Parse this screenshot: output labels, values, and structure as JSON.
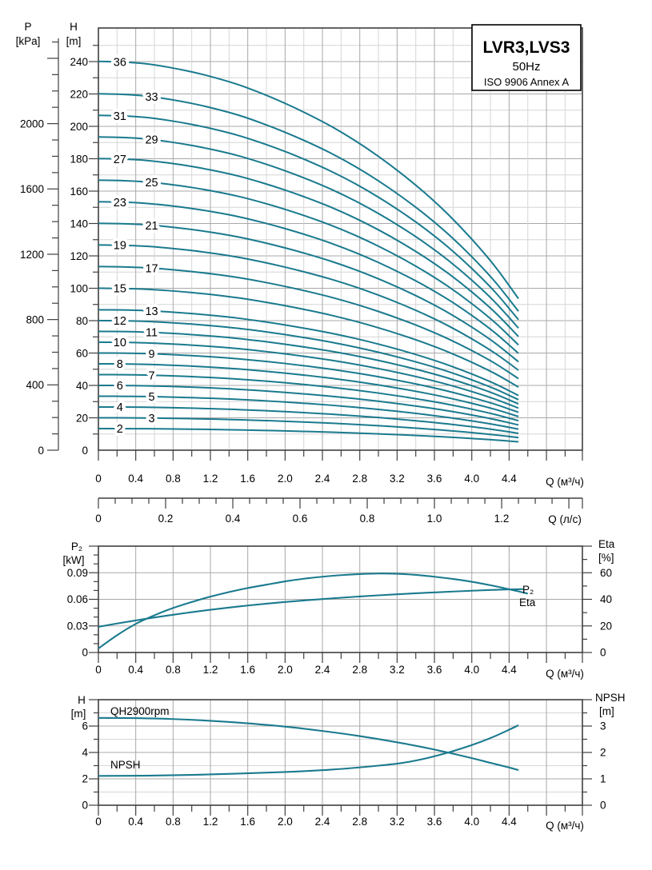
{
  "title_box": {
    "model": "LVR3,LVS3",
    "frequency": "50Hz",
    "standard": "ISO 9906 Annex A"
  },
  "colors": {
    "curve": "#1a7a8e",
    "frame": "#3f3f3f",
    "grid_major": "#a8a8a8",
    "grid_minor": "#d6d6d6",
    "text": "#000000",
    "halo": "#ffffff"
  },
  "chart_data": [
    {
      "id": "qh-multistage",
      "type": "line",
      "x_axis": {
        "label": "Q (м³/ч)",
        "tick_labels": [
          "0",
          "0.4",
          "0.8",
          "1.2",
          "1.6",
          "2.0",
          "2.4",
          "2.8",
          "3.2",
          "3.6",
          "4.0",
          "4.4"
        ],
        "major_step": 0.4,
        "minor_step": 0.2,
        "max": 5.185
      },
      "x_axis_secondary": {
        "label": "Q (л/с)",
        "tick_labels": [
          "0",
          "0.2",
          "0.4",
          "0.6",
          "0.8",
          "1.0",
          "1.2"
        ],
        "major_step": 0.2,
        "minor_step": 0.05,
        "max": 1.4,
        "to_m3h": 3.6
      },
      "p_axis": {
        "title": "P",
        "unit": "[kPa]",
        "tick_labels": [
          "0",
          "400",
          "800",
          "1200",
          "1600",
          "2000"
        ],
        "major_step": 400,
        "minor_step": 100,
        "max": 2500
      },
      "h_axis": {
        "title": "H",
        "unit": "[m]",
        "tick_labels": [
          "0",
          "20",
          "40",
          "60",
          "80",
          "100",
          "120",
          "140",
          "160",
          "180",
          "200",
          "220",
          "240"
        ],
        "major_step": 20,
        "minor_step": 10,
        "max": 250
      },
      "per_stage_curve": {
        "Q": [
          0,
          0.25,
          0.5,
          0.75,
          1.0,
          1.25,
          1.5,
          1.75,
          2.0,
          2.25,
          2.5,
          2.75,
          3.0,
          3.25,
          3.5,
          3.75,
          4.0,
          4.25,
          4.5
        ],
        "H": [
          6.67,
          6.66,
          6.63,
          6.57,
          6.49,
          6.39,
          6.27,
          6.12,
          5.95,
          5.76,
          5.55,
          5.31,
          5.04,
          4.74,
          4.41,
          4.04,
          3.62,
          3.15,
          2.6
        ]
      },
      "stage_label_columns_Q": [
        0.23,
        0.57
      ],
      "stages": [
        {
          "label": "36",
          "stages": 36,
          "col": 0
        },
        {
          "label": "33",
          "stages": 33,
          "col": 1
        },
        {
          "label": "31",
          "stages": 31,
          "col": 0
        },
        {
          "label": "29",
          "stages": 29,
          "col": 1
        },
        {
          "label": "27",
          "stages": 27,
          "col": 0
        },
        {
          "label": "25",
          "stages": 25,
          "col": 1
        },
        {
          "label": "23",
          "stages": 23,
          "col": 0
        },
        {
          "label": "21",
          "stages": 21,
          "col": 1
        },
        {
          "label": "19",
          "stages": 19,
          "col": 0
        },
        {
          "label": "17",
          "stages": 17,
          "col": 1
        },
        {
          "label": "15",
          "stages": 15,
          "col": 0
        },
        {
          "label": "13",
          "stages": 13,
          "col": 1
        },
        {
          "label": "12",
          "stages": 12,
          "col": 0
        },
        {
          "label": "11",
          "stages": 11,
          "col": 1
        },
        {
          "label": "10",
          "stages": 10,
          "col": 0
        },
        {
          "label": "9",
          "stages": 9,
          "col": 1
        },
        {
          "label": "8",
          "stages": 8,
          "col": 0
        },
        {
          "label": "7",
          "stages": 7,
          "col": 1
        },
        {
          "label": "6",
          "stages": 6,
          "col": 0
        },
        {
          "label": "5",
          "stages": 5,
          "col": 1
        },
        {
          "label": "4",
          "stages": 4,
          "col": 0
        },
        {
          "label": "3",
          "stages": 3,
          "col": 1
        },
        {
          "label": "2",
          "stages": 2,
          "col": 0
        }
      ]
    },
    {
      "id": "power-efficiency",
      "type": "line",
      "x_axis": {
        "label": "Q (м³/ч)",
        "tick_labels": [
          "0",
          "0.4",
          "0.8",
          "1.2",
          "1.6",
          "2.0",
          "2.4",
          "2.8",
          "3.2",
          "3.6",
          "4.0",
          "4.4"
        ],
        "major_step": 0.4,
        "minor_step": 0.2,
        "max": 5.185
      },
      "left_axis": {
        "title": "P₂",
        "unit": "[kW]",
        "tick_labels": [
          "0",
          "0.03",
          "0.06",
          "0.09"
        ],
        "major_step": 0.03,
        "minor_step": 0.01,
        "max": 0.12
      },
      "right_axis": {
        "title": "Eta",
        "unit": "[%]",
        "tick_labels": [
          "0",
          "20",
          "40",
          "60"
        ],
        "major_step": 20,
        "minor_step": 10,
        "max": 80
      },
      "series": [
        {
          "name": "P₂",
          "axis": "left",
          "Q": [
            0,
            0.2,
            0.4,
            0.6,
            0.8,
            1.0,
            1.2,
            1.4,
            1.6,
            1.8,
            2.0,
            2.2,
            2.4,
            2.6,
            2.8,
            3.0,
            3.2,
            3.4,
            3.6,
            3.8,
            4.0,
            4.2,
            4.4,
            4.55
          ],
          "values": [
            0.029,
            0.0327,
            0.0362,
            0.0395,
            0.0426,
            0.0455,
            0.0482,
            0.0507,
            0.053,
            0.0551,
            0.057,
            0.0587,
            0.0603,
            0.0618,
            0.0632,
            0.0645,
            0.0657,
            0.0668,
            0.0678,
            0.0688,
            0.0697,
            0.0705,
            0.0712,
            0.0715
          ]
        },
        {
          "name": "Eta",
          "axis": "right",
          "Q": [
            0,
            0.2,
            0.4,
            0.6,
            0.8,
            1.0,
            1.2,
            1.4,
            1.6,
            1.8,
            2.0,
            2.2,
            2.4,
            2.6,
            2.8,
            3.0,
            3.2,
            3.4,
            3.6,
            3.8,
            4.0,
            4.2,
            4.4,
            4.6
          ],
          "values": [
            3,
            13,
            21.5,
            28,
            33.5,
            38,
            42,
            45.5,
            48.5,
            51,
            53.5,
            55.5,
            57,
            58.2,
            59,
            59.4,
            59.2,
            58.4,
            57,
            55.3,
            53.2,
            50.6,
            47.6,
            44.3
          ]
        }
      ]
    },
    {
      "id": "qh-npsh",
      "type": "line",
      "x_axis": {
        "label": "Q (м³/ч)",
        "tick_labels": [
          "0",
          "0.4",
          "0.8",
          "1.2",
          "1.6",
          "2.0",
          "2.4",
          "2.8",
          "3.2",
          "3.6",
          "4.0",
          "4.4"
        ],
        "major_step": 0.4,
        "minor_step": 0.2,
        "max": 5.185
      },
      "left_axis": {
        "title": "H",
        "unit": "[m]",
        "tick_labels": [
          "0",
          "2",
          "4",
          "6"
        ],
        "major_step": 2,
        "minor_step": 1,
        "max": 8
      },
      "right_axis": {
        "title": "NPSH",
        "unit": "[m]",
        "tick_labels": [
          "0",
          "1",
          "2",
          "3"
        ],
        "major_step": 1,
        "minor_step": 0.5,
        "max": 4
      },
      "series": [
        {
          "name": "QH2900rpm",
          "axis": "left",
          "Q": [
            0,
            0.4,
            0.8,
            1.2,
            1.6,
            2.0,
            2.4,
            2.8,
            3.2,
            3.6,
            4.0,
            4.2,
            4.4,
            4.5
          ],
          "values": [
            6.62,
            6.6,
            6.53,
            6.4,
            6.21,
            5.96,
            5.63,
            5.24,
            4.77,
            4.22,
            3.57,
            3.21,
            2.86,
            2.66
          ]
        },
        {
          "name": "NPSH",
          "axis": "right",
          "Q": [
            0,
            0.5,
            1.0,
            1.5,
            2.0,
            2.5,
            3.0,
            3.25,
            3.5,
            3.75,
            4.0,
            4.25,
            4.5
          ],
          "values": [
            1.11,
            1.12,
            1.15,
            1.2,
            1.26,
            1.35,
            1.5,
            1.6,
            1.77,
            2.0,
            2.28,
            2.62,
            3.03
          ]
        }
      ]
    }
  ]
}
